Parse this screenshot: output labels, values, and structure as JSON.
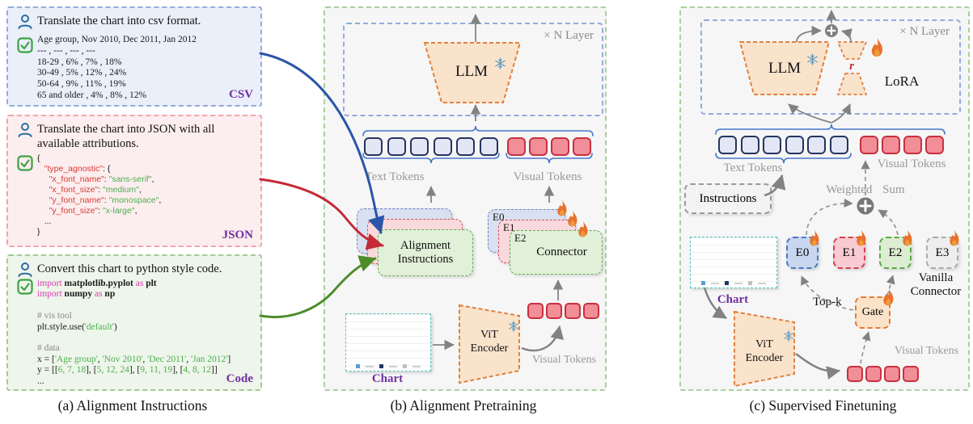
{
  "colors": {
    "tag_purple": "#7030a0",
    "flame_orange": "#e8722c",
    "snowflake_blue": "#5b9bbf",
    "token_text_fill": "#e3e6f5",
    "token_visual_fill": "#f28e97",
    "arrow_blue": "#2b55a8",
    "arrow_red": "#c42a35",
    "arrow_green": "#4c8c2b"
  },
  "panel_a": {
    "caption": "(a) Alignment Instructions",
    "csv": {
      "prompt": "Translate the chart into csv format.",
      "tag": "CSV",
      "lines": [
        [
          {
            "c": "p",
            "t": "Age group, Nov 2010, Dec 2011, Jan 2012"
          }
        ],
        [
          {
            "c": "p",
            "t": "--- , --- , --- , ---"
          }
        ],
        [
          {
            "c": "p",
            "t": "18-29 , 6% , 7% , 18%"
          }
        ],
        [
          {
            "c": "p",
            "t": "30-49 , 5% , 12% , 24%"
          }
        ],
        [
          {
            "c": "p",
            "t": "50-64 , 9% , 11% , 19%"
          }
        ],
        [
          {
            "c": "p",
            "t": "65 and older , 4% , 8% , 12%"
          }
        ]
      ]
    },
    "json": {
      "prompt": "Translate the chart into JSON with all available attributions.",
      "tag": "JSON",
      "lines": [
        [
          {
            "c": "p",
            "t": "{"
          }
        ],
        [
          {
            "c": "p",
            "t": "   "
          },
          {
            "c": "r",
            "t": "\"type_agnostic\""
          },
          {
            "c": "p",
            "t": ": {"
          }
        ],
        [
          {
            "c": "p",
            "t": "     "
          },
          {
            "c": "r",
            "t": "\"x_font_name\""
          },
          {
            "c": "p",
            "t": ": "
          },
          {
            "c": "s",
            "t": "\"sans-serif\""
          },
          {
            "c": "p",
            "t": ","
          }
        ],
        [
          {
            "c": "p",
            "t": "     "
          },
          {
            "c": "r",
            "t": "\"x_font_size\""
          },
          {
            "c": "p",
            "t": ": "
          },
          {
            "c": "s",
            "t": "\"medium\""
          },
          {
            "c": "p",
            "t": ","
          }
        ],
        [
          {
            "c": "p",
            "t": "     "
          },
          {
            "c": "r",
            "t": "\"y_font_name\""
          },
          {
            "c": "p",
            "t": ": "
          },
          {
            "c": "s",
            "t": "\"monospace\""
          },
          {
            "c": "p",
            "t": ","
          }
        ],
        [
          {
            "c": "p",
            "t": "     "
          },
          {
            "c": "r",
            "t": "\"y_font_size\""
          },
          {
            "c": "p",
            "t": ": "
          },
          {
            "c": "s",
            "t": "\"x-large\""
          },
          {
            "c": "p",
            "t": ","
          }
        ],
        [
          {
            "c": "p",
            "t": "   ..."
          }
        ],
        [
          {
            "c": "p",
            "t": "}"
          }
        ]
      ]
    },
    "code": {
      "prompt": "Convert this chart to python style code.",
      "tag": "Code",
      "lines": [
        [
          {
            "c": "k",
            "t": "import"
          },
          {
            "c": "b",
            "t": " matplotlib.pyplot "
          },
          {
            "c": "k",
            "t": "as"
          },
          {
            "c": "b",
            "t": " plt"
          }
        ],
        [
          {
            "c": "k",
            "t": "import"
          },
          {
            "c": "b",
            "t": " numpy "
          },
          {
            "c": "k",
            "t": "as"
          },
          {
            "c": "b",
            "t": " np"
          }
        ],
        [
          {
            "c": "p",
            "t": " "
          }
        ],
        [
          {
            "c": "c",
            "t": "# vis tool"
          }
        ],
        [
          {
            "c": "p",
            "t": "plt.style.use("
          },
          {
            "c": "s",
            "t": "'default'"
          },
          {
            "c": "p",
            "t": ")"
          }
        ],
        [
          {
            "c": "p",
            "t": " "
          }
        ],
        [
          {
            "c": "c",
            "t": "# data"
          }
        ],
        [
          {
            "c": "p",
            "t": "x = ["
          },
          {
            "c": "s",
            "t": "'Age group'"
          },
          {
            "c": "p",
            "t": ", "
          },
          {
            "c": "s",
            "t": "'Nov 2010'"
          },
          {
            "c": "p",
            "t": ", "
          },
          {
            "c": "s",
            "t": "'Dec 2011'"
          },
          {
            "c": "p",
            "t": ", "
          },
          {
            "c": "s",
            "t": "'Jan 2012'"
          },
          {
            "c": "p",
            "t": "]"
          }
        ],
        [
          {
            "c": "p",
            "t": "y = [["
          },
          {
            "c": "s",
            "t": "6, 7, 18"
          },
          {
            "c": "p",
            "t": "], ["
          },
          {
            "c": "s",
            "t": "5, 12, 24"
          },
          {
            "c": "p",
            "t": "], ["
          },
          {
            "c": "s",
            "t": "9, 11, 19"
          },
          {
            "c": "p",
            "t": "], ["
          },
          {
            "c": "s",
            "t": "4, 8, 12"
          },
          {
            "c": "p",
            "t": "]]"
          }
        ],
        [
          {
            "c": "p",
            "t": "..."
          }
        ]
      ]
    }
  },
  "mini_chart": {
    "groups": [
      [
        6,
        7,
        18
      ],
      [
        5,
        12,
        24
      ],
      [
        9,
        11,
        19
      ],
      [
        4,
        8,
        12
      ]
    ],
    "bar_colors": [
      "#5b9bd5",
      "#1f3864",
      "#bfbfbf"
    ],
    "max": 24
  },
  "panel_b": {
    "caption": "(b) Alignment Pretraining",
    "n_layer": "× N Layer",
    "llm": "LLM",
    "text_tokens": "Text Tokens",
    "visual_tokens": "Visual Tokens",
    "stack_title": "Alignment Instructions",
    "connector": "Connector",
    "connector_labels": [
      "E0",
      "E1",
      "E2"
    ],
    "chart": "Chart",
    "vit": "ViT Encoder",
    "visual_tokens_lower": "Visual Tokens"
  },
  "panel_c": {
    "caption": "(c) Supervised Finetuning",
    "n_layer": "× N Layer",
    "llm": "LLM",
    "lora_r": "r",
    "lora": "LoRA",
    "text_tokens": "Text Tokens",
    "visual_tokens": "Visual Tokens",
    "instructions": "Instructions",
    "weighted_sum": "Weighted Sum",
    "experts": [
      "E0",
      "E1",
      "E2",
      "E3"
    ],
    "vanilla": "Vanilla Connector",
    "chart": "Chart",
    "top_k": "Top-k",
    "gate": "Gate",
    "vit": "ViT Encoder",
    "visual_tokens_lower": "Visual Tokens"
  }
}
